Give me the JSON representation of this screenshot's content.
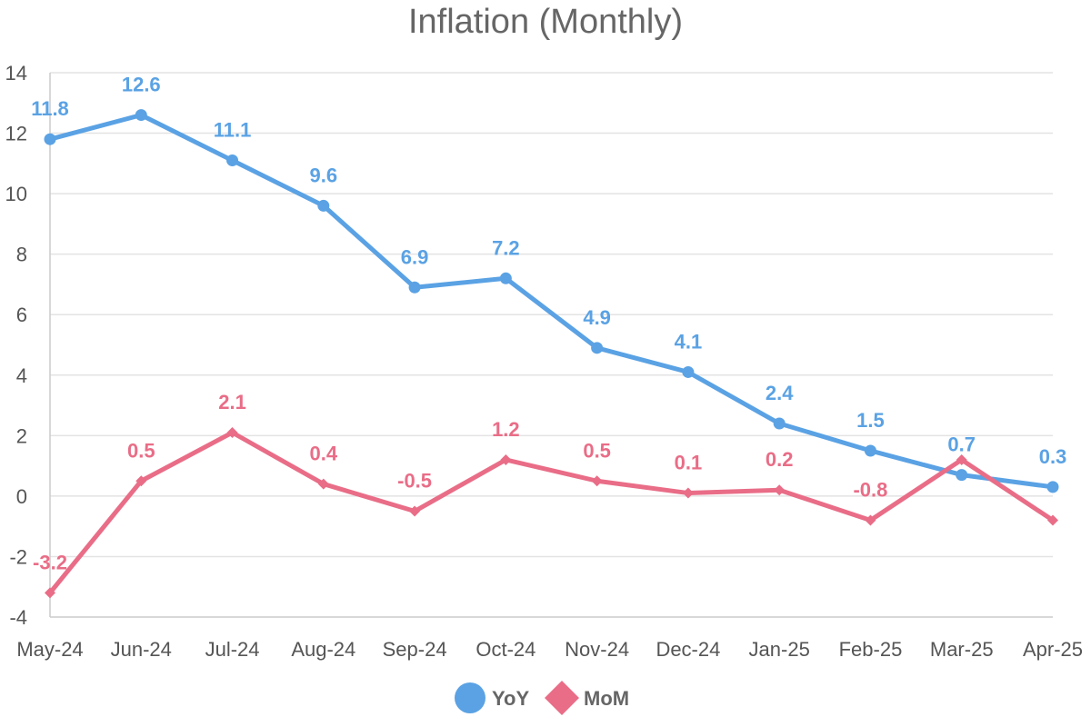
{
  "chart_data": {
    "type": "line",
    "title": "Inflation (Monthly)",
    "xlabel": "",
    "ylabel": "",
    "categories": [
      "May-24",
      "Jun-24",
      "Jul-24",
      "Aug-24",
      "Sep-24",
      "Oct-24",
      "Nov-24",
      "Dec-24",
      "Jan-25",
      "Feb-25",
      "Mar-25",
      "Apr-25"
    ],
    "ylim": [
      -4,
      14
    ],
    "yticks": [
      -4,
      -2,
      0,
      2,
      4,
      6,
      8,
      10,
      12,
      14
    ],
    "grid": true,
    "legend": "bottom-center",
    "series": [
      {
        "name": "YoY",
        "color": "#5aa2e4",
        "marker": "circle",
        "values": [
          11.8,
          12.6,
          11.1,
          9.6,
          6.9,
          7.2,
          4.9,
          4.1,
          2.4,
          1.5,
          0.7,
          0.3
        ],
        "labels": [
          "11.8",
          "12.6",
          "11.1",
          "9.6",
          "6.9",
          "7.2",
          "4.9",
          "4.1",
          "2.4",
          "1.5",
          "0.7",
          "0.3"
        ]
      },
      {
        "name": "MoM",
        "color": "#e96d87",
        "marker": "diamond",
        "values": [
          -3.2,
          0.5,
          2.1,
          0.4,
          -0.5,
          1.2,
          0.5,
          0.1,
          0.2,
          -0.8,
          1.2,
          -0.8
        ],
        "labels": [
          "-3.2",
          "0.5",
          "2.1",
          "0.4",
          "-0.5",
          "1.2",
          "0.5",
          "0.1",
          "0.2",
          "-0.8",
          "",
          ""
        ]
      }
    ]
  }
}
